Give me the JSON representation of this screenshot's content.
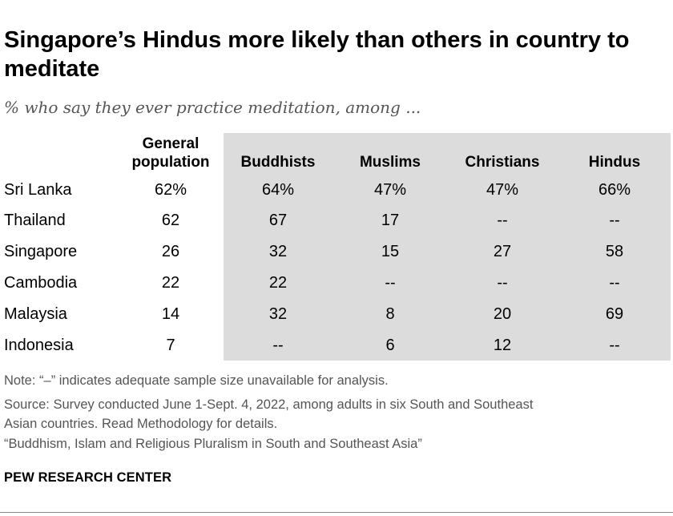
{
  "title": "Singapore’s Hindus more likely than others in country to meditate",
  "subtitle": "% who say they ever practice meditation, among ...",
  "chart_data": {
    "type": "table",
    "title": "Singapore’s Hindus more likely than others in country to meditate",
    "subtitle": "% who say they ever practice meditation, among ...",
    "columns": [
      {
        "label": "General population",
        "label_lines": [
          "General",
          "population"
        ],
        "shaded": false
      },
      {
        "label": "Buddhists",
        "label_lines": [
          "Buddhists"
        ],
        "shaded": true
      },
      {
        "label": "Muslims",
        "label_lines": [
          "Muslims"
        ],
        "shaded": true
      },
      {
        "label": "Christians",
        "label_lines": [
          "Christians"
        ],
        "shaded": true
      },
      {
        "label": "Hindus",
        "label_lines": [
          "Hindus"
        ],
        "shaded": true
      }
    ],
    "rows": [
      {
        "country": "Sri Lanka",
        "values": [
          "62%",
          "64%",
          "47%",
          "47%",
          "66%"
        ]
      },
      {
        "country": "Thailand",
        "values": [
          "62",
          "67",
          "17",
          "--",
          "--"
        ]
      },
      {
        "country": "Singapore",
        "values": [
          "26",
          "32",
          "15",
          "27",
          "58"
        ]
      },
      {
        "country": "Cambodia",
        "values": [
          "22",
          "22",
          "--",
          "--",
          "--"
        ]
      },
      {
        "country": "Malaysia",
        "values": [
          "14",
          "32",
          "8",
          "20",
          "69"
        ]
      },
      {
        "country": "Indonesia",
        "values": [
          "7",
          "--",
          "6",
          "12",
          "--"
        ]
      }
    ],
    "shade_color": "#dcdcdc"
  },
  "notes": {
    "note": "Note: “–” indicates adequate sample size unavailable for analysis.",
    "source_line1": "Source: Survey conducted June 1-Sept. 4, 2022, among adults in six South and Southeast",
    "source_line2": "Asian countries. Read Methodology for details.",
    "report": "“Buddhism, Islam and Religious Pluralism in South and Southeast Asia”"
  },
  "brand": "PEW RESEARCH CENTER",
  "colors": {
    "text": "#000000",
    "muted": "#555555",
    "shade": "#dcdcdc"
  }
}
